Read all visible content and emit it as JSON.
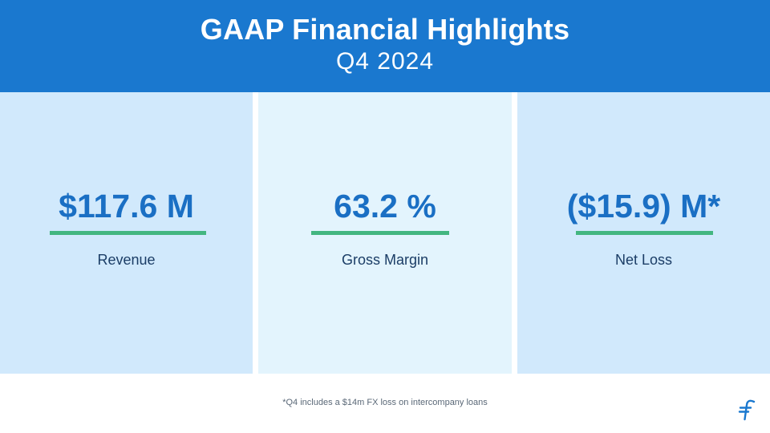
{
  "header": {
    "title": "GAAP Financial Highlights",
    "subtitle": "Q4 2024"
  },
  "highlights": [
    {
      "value": "$117.6 M",
      "label": "Revenue"
    },
    {
      "value": "63.2 %",
      "label": "Gross Margin"
    },
    {
      "value": "($15.9) M*",
      "label": "Net Loss"
    }
  ],
  "footnote": "*Q4 includes a $14m FX loss on intercompany loans",
  "colors": {
    "header_bg": "#1a78cf",
    "value_text": "#1a6fc4",
    "accent_underline": "#43b680",
    "panel_bg": "#d1e9fc",
    "panel_bg_alt": "#e3f4fd"
  },
  "logo": {
    "icon": "brand-logo-icon"
  }
}
